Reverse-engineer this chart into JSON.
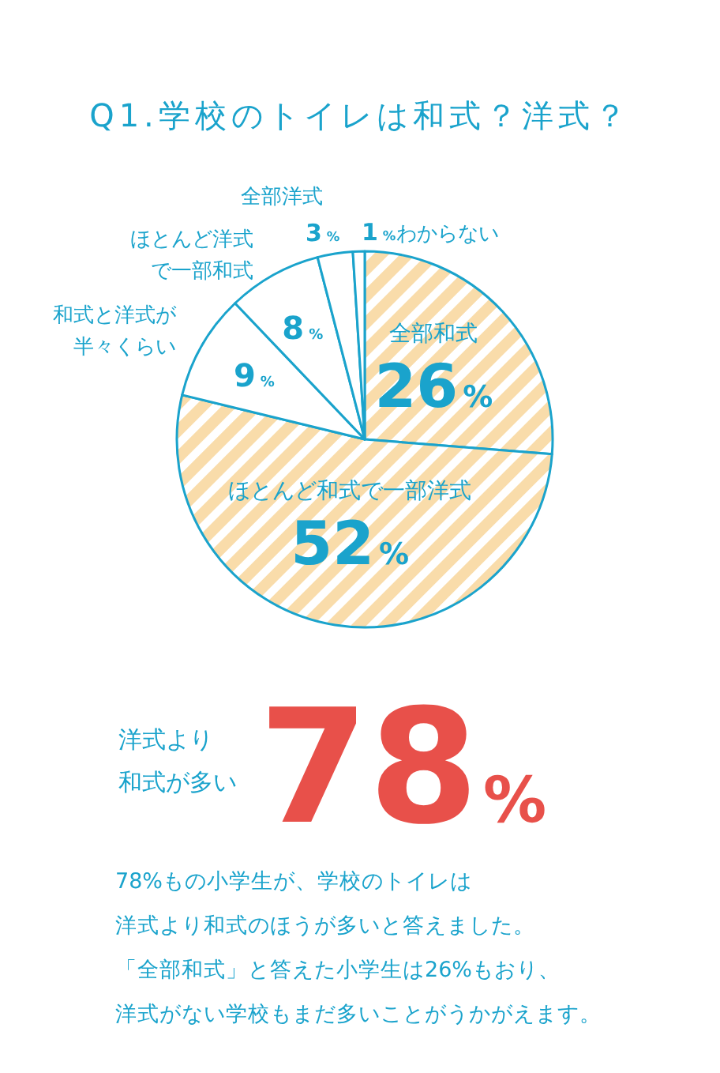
{
  "chart_data": {
    "type": "pie",
    "title": "Q1.学校のトイレは和式？洋式？",
    "categories": [
      "全部和式",
      "ほとんど和式で一部洋式",
      "和式と洋式が半々くらい",
      "ほとんど洋式で一部和式",
      "全部洋式",
      "わからない"
    ],
    "values": [
      26,
      52,
      9,
      8,
      3,
      1
    ],
    "value_labels": [
      "26%",
      "52%",
      "9%",
      "8%",
      "3%",
      "1%"
    ],
    "colors": [
      "#f9dcaa",
      "#f9dcaa",
      "#ffffff",
      "#ffffff",
      "#ffffff",
      "#ffffff"
    ],
    "annotations": [
      "洋式より",
      "和式が多い",
      "78%",
      "78%もの小学生が、学校のトイレは",
      "洋式より和式のほうが多いと答えました。",
      "「全部和式」と答えた小学生は26%もおり、",
      "洋式がない学校もまだ多いことがうかがえます。"
    ]
  }
}
